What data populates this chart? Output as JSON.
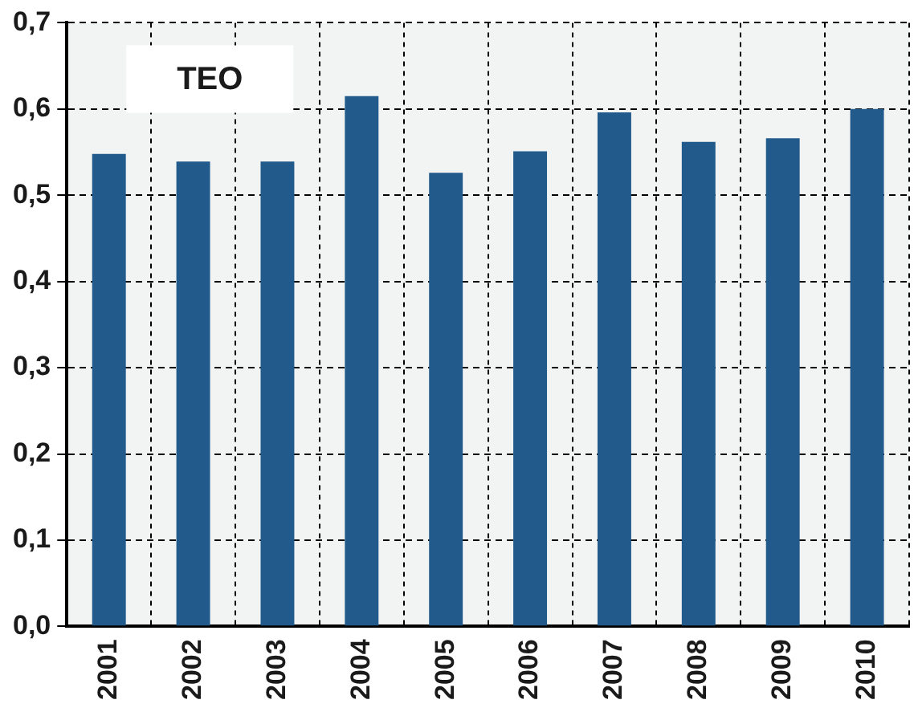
{
  "chart_data": {
    "type": "bar",
    "categories": [
      "2001",
      "2002",
      "2003",
      "2004",
      "2005",
      "2006",
      "2007",
      "2008",
      "2009",
      "2010"
    ],
    "values": [
      0.548,
      0.539,
      0.539,
      0.615,
      0.526,
      0.551,
      0.596,
      0.562,
      0.566,
      0.6
    ],
    "color": "#225a8c",
    "ylim": [
      0,
      0.7
    ],
    "yticks": [
      {
        "value": 0,
        "label": "0,0"
      },
      {
        "value": 0.1,
        "label": "0,1"
      },
      {
        "value": 0.2,
        "label": "0,2"
      },
      {
        "value": 0.3,
        "label": "0,3"
      },
      {
        "value": 0.4,
        "label": "0,4"
      },
      {
        "value": 0.5,
        "label": "0,5"
      },
      {
        "value": 0.6,
        "label": "0,6"
      },
      {
        "value": 0.7,
        "label": "0,7"
      }
    ],
    "grid": true,
    "legend": false,
    "annotations": [
      "TEO"
    ]
  }
}
